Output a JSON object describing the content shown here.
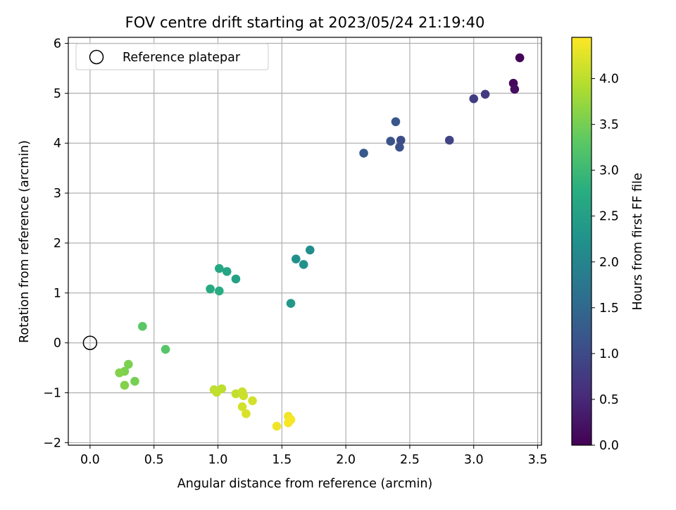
{
  "chart_data": {
    "type": "scatter",
    "title": "FOV centre drift starting at 2023/05/24 21:19:40",
    "xlabel": "Angular distance from reference (arcmin)",
    "ylabel": "Rotation from reference (arcmin)",
    "xlim": [
      -0.17,
      3.53
    ],
    "ylim": [
      -2.05,
      6.12
    ],
    "xticks": [
      0.0,
      0.5,
      1.0,
      1.5,
      2.0,
      2.5,
      3.0,
      3.5
    ],
    "xtick_labels": [
      "0.0",
      "0.5",
      "1.0",
      "1.5",
      "2.0",
      "2.5",
      "3.0",
      "3.5"
    ],
    "yticks": [
      -2,
      -1,
      0,
      1,
      2,
      3,
      4,
      5,
      6
    ],
    "ytick_labels": [
      "−2",
      "−1",
      "0",
      "1",
      "2",
      "3",
      "4",
      "5",
      "6"
    ],
    "grid": true,
    "legend": {
      "location": "top-left",
      "entries": [
        {
          "label": "Reference platepar",
          "marker": "open-circle",
          "x": 0.0,
          "y": 0.0
        }
      ]
    },
    "colorbar": {
      "label": "Hours from first FF file",
      "colormap": "viridis",
      "range": [
        0.0,
        4.45
      ],
      "ticks": [
        0.0,
        0.5,
        1.0,
        1.5,
        2.0,
        2.5,
        3.0,
        3.5,
        4.0
      ],
      "tick_labels": [
        "0.0",
        "0.5",
        "1.0",
        "1.5",
        "2.0",
        "2.5",
        "3.0",
        "3.5",
        "4.0"
      ]
    },
    "points": [
      {
        "x": 3.36,
        "y": 5.71,
        "hours": 0.05
      },
      {
        "x": 3.31,
        "y": 5.2,
        "hours": 0.1
      },
      {
        "x": 3.32,
        "y": 5.08,
        "hours": 0.15
      },
      {
        "x": 3.09,
        "y": 4.98,
        "hours": 0.75
      },
      {
        "x": 3.0,
        "y": 4.89,
        "hours": 0.8
      },
      {
        "x": 2.81,
        "y": 4.06,
        "hours": 0.9
      },
      {
        "x": 2.43,
        "y": 4.06,
        "hours": 1.05
      },
      {
        "x": 2.42,
        "y": 3.92,
        "hours": 1.1
      },
      {
        "x": 2.35,
        "y": 4.04,
        "hours": 1.15
      },
      {
        "x": 2.39,
        "y": 4.43,
        "hours": 1.2
      },
      {
        "x": 2.14,
        "y": 3.8,
        "hours": 1.25
      },
      {
        "x": 1.72,
        "y": 1.86,
        "hours": 2.15
      },
      {
        "x": 1.61,
        "y": 1.68,
        "hours": 2.2
      },
      {
        "x": 1.67,
        "y": 1.57,
        "hours": 2.25
      },
      {
        "x": 1.57,
        "y": 0.79,
        "hours": 2.35
      },
      {
        "x": 1.14,
        "y": 1.28,
        "hours": 2.55
      },
      {
        "x": 1.07,
        "y": 1.43,
        "hours": 2.6
      },
      {
        "x": 1.01,
        "y": 1.49,
        "hours": 2.65
      },
      {
        "x": 0.94,
        "y": 1.08,
        "hours": 2.7
      },
      {
        "x": 1.01,
        "y": 1.04,
        "hours": 2.75
      },
      {
        "x": 0.59,
        "y": -0.13,
        "hours": 3.25
      },
      {
        "x": 0.41,
        "y": 0.33,
        "hours": 3.3
      },
      {
        "x": 0.3,
        "y": -0.43,
        "hours": 3.55
      },
      {
        "x": 0.27,
        "y": -0.57,
        "hours": 3.55
      },
      {
        "x": 0.23,
        "y": -0.6,
        "hours": 3.6
      },
      {
        "x": 0.35,
        "y": -0.77,
        "hours": 3.5
      },
      {
        "x": 0.27,
        "y": -0.85,
        "hours": 3.6
      },
      {
        "x": 0.97,
        "y": -0.94,
        "hours": 4.0
      },
      {
        "x": 1.03,
        "y": -0.92,
        "hours": 4.0
      },
      {
        "x": 0.99,
        "y": -0.99,
        "hours": 4.05
      },
      {
        "x": 1.14,
        "y": -1.02,
        "hours": 4.05
      },
      {
        "x": 1.19,
        "y": -0.98,
        "hours": 4.1
      },
      {
        "x": 1.2,
        "y": -1.06,
        "hours": 4.1
      },
      {
        "x": 1.27,
        "y": -1.16,
        "hours": 4.15
      },
      {
        "x": 1.19,
        "y": -1.28,
        "hours": 4.15
      },
      {
        "x": 1.22,
        "y": -1.42,
        "hours": 4.2
      },
      {
        "x": 1.46,
        "y": -1.67,
        "hours": 4.35
      },
      {
        "x": 1.55,
        "y": -1.47,
        "hours": 4.35
      },
      {
        "x": 1.57,
        "y": -1.54,
        "hours": 4.4
      },
      {
        "x": 1.55,
        "y": -1.6,
        "hours": 4.4
      }
    ]
  }
}
